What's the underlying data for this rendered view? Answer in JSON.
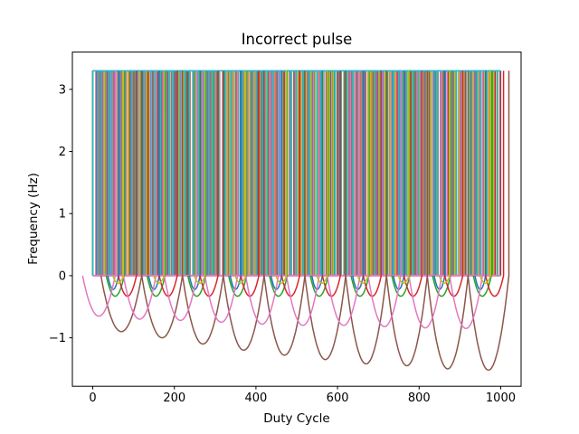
{
  "chart_data": {
    "type": "line",
    "title": "Incorrect pulse",
    "xlabel": "Duty Cycle",
    "ylabel": "Frequency (Hz)",
    "xlim": [
      -50,
      1050
    ],
    "ylim": [
      -1.78,
      3.6
    ],
    "xticks": [
      0,
      200,
      400,
      600,
      800,
      1000
    ],
    "yticks": [
      -1,
      0,
      1,
      2,
      3
    ],
    "grid": false,
    "legend": "none",
    "pulse_high": 3.3,
    "pulse_low": 0,
    "series": [
      {
        "color": "#1f77b4",
        "dip_x": [
          50,
          150,
          250,
          350,
          450,
          550,
          650,
          750,
          850,
          950
        ],
        "dip_y": [
          -0.22,
          -0.22,
          -0.22,
          -0.22,
          -0.22,
          -0.22,
          -0.22,
          -0.22,
          -0.22,
          -0.22
        ]
      },
      {
        "color": "#ff7f0e",
        "dip_x": [],
        "dip_y": []
      },
      {
        "color": "#2ca02c",
        "dip_x": [
          55,
          155,
          255,
          355,
          455,
          555,
          655,
          755,
          855,
          955
        ],
        "dip_y": [
          -0.33,
          -0.33,
          -0.33,
          -0.33,
          -0.33,
          -0.33,
          -0.33,
          -0.33,
          -0.33,
          -0.33
        ]
      },
      {
        "color": "#d62728",
        "dip_x": [
          85,
          185,
          285,
          385,
          485,
          585,
          685,
          785,
          885,
          985
        ],
        "dip_y": [
          -0.33,
          -0.33,
          -0.33,
          -0.33,
          -0.33,
          -0.33,
          -0.33,
          -0.33,
          -0.33,
          -0.33
        ]
      },
      {
        "color": "#9467bd",
        "dip_x": [],
        "dip_y": []
      },
      {
        "color": "#8c564b",
        "dip_x": [
          70,
          170,
          270,
          370,
          470,
          570,
          670,
          770,
          870,
          970
        ],
        "dip_y": [
          -0.9,
          -1.0,
          -1.1,
          -1.2,
          -1.28,
          -1.35,
          -1.42,
          -1.45,
          -1.5,
          -1.52
        ]
      },
      {
        "color": "#e377c2",
        "dip_x": [
          15,
          115,
          215,
          315,
          415,
          515,
          615,
          715,
          815,
          915
        ],
        "dip_y": [
          -0.65,
          -0.7,
          -0.72,
          -0.75,
          -0.78,
          -0.8,
          -0.8,
          -0.82,
          -0.84,
          -0.85
        ]
      },
      {
        "color": "#7f7f7f",
        "dip_x": [],
        "dip_y": []
      },
      {
        "color": "#bcbd22",
        "dip_x": [
          62,
          162,
          262,
          362,
          462,
          562,
          662,
          762,
          862,
          962
        ],
        "dip_y": [
          -0.12,
          -0.12,
          -0.12,
          -0.12,
          -0.12,
          -0.12,
          -0.12,
          -0.12,
          -0.12,
          -0.12
        ]
      },
      {
        "color": "#17becf",
        "dip_x": [],
        "dip_y": []
      }
    ]
  }
}
